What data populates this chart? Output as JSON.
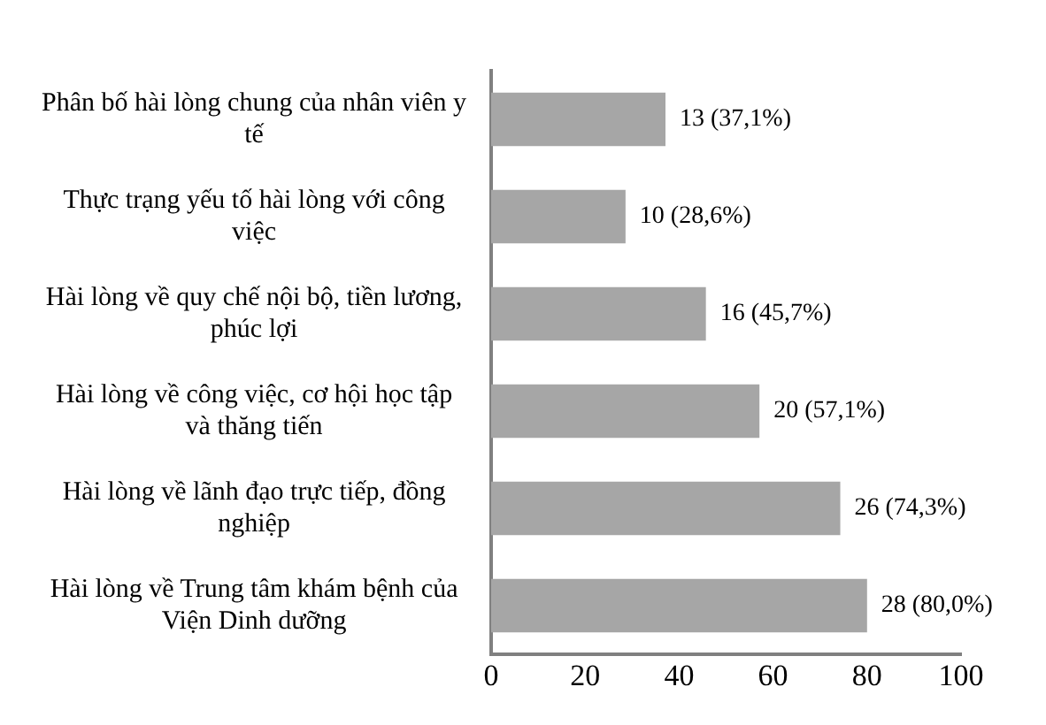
{
  "chart_data": {
    "type": "bar",
    "orientation": "horizontal",
    "categories": [
      "Phân bố hài lòng chung của nhân viên y tế",
      "Thực trạng yếu tố hài lòng với công việc",
      "Hài lòng về quy chế nội bộ, tiền lương, phúc lợi",
      "Hài lòng về công việc, cơ hội học tập và thăng tiến",
      "Hài lòng về lãnh đạo trực tiếp, đồng nghiệp",
      "Hài lòng về Trung tâm khám bệnh của Viện Dinh dưỡng"
    ],
    "values": [
      37.1,
      28.6,
      45.7,
      57.1,
      74.3,
      80.0
    ],
    "value_labels": [
      "13 (37,1%)",
      "10 (28,6%)",
      "16 (45,7%)",
      "20 (57,1%)",
      "26 (74,3%)",
      "28 (80,0%)"
    ],
    "color": "#a6a6a6",
    "xlim": [
      0,
      100
    ],
    "xticks": [
      0,
      20,
      40,
      60,
      80,
      100
    ]
  }
}
